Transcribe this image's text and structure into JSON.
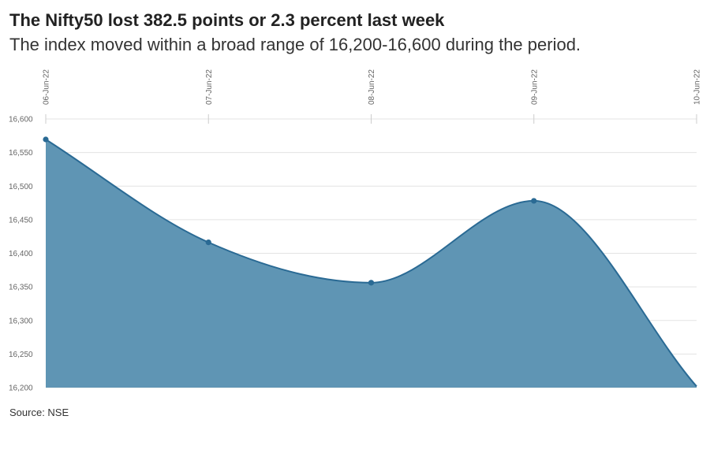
{
  "header": {
    "title": "The Nifty50 lost 382.5 points or 2.3 percent last week",
    "subtitle": "The index moved within a broad range of 16,200-16,600 during the period."
  },
  "footer": {
    "source": "Source: NSE"
  },
  "colors": {
    "area": "#5f95b4",
    "line": "#2a6a94",
    "grid": "#e3e3e3",
    "axis_text": "#666666"
  },
  "chart_data": {
    "type": "area",
    "title": "The Nifty50 lost 382.5 points or 2.3 percent last week",
    "subtitle": "The index moved within a broad range of 16,200-16,600 during the period.",
    "xlabel": "",
    "ylabel": "",
    "x": [
      "06-Jun-22",
      "07-Jun-22",
      "08-Jun-22",
      "09-Jun-22",
      "10-Jun-22"
    ],
    "series": [
      {
        "values": [
          16569.5,
          16416.3,
          16356.2,
          16478.1,
          16201.8
        ]
      }
    ],
    "y_ticks": [
      16200,
      16250,
      16300,
      16350,
      16400,
      16450,
      16500,
      16550,
      16600
    ],
    "y_tick_labels": [
      "16,200",
      "16,250",
      "16,300",
      "16,350",
      "16,400",
      "16,450",
      "16,500",
      "16,550",
      "16,600"
    ],
    "ylim": [
      16200,
      16600
    ],
    "grid": true,
    "legend": "none"
  }
}
